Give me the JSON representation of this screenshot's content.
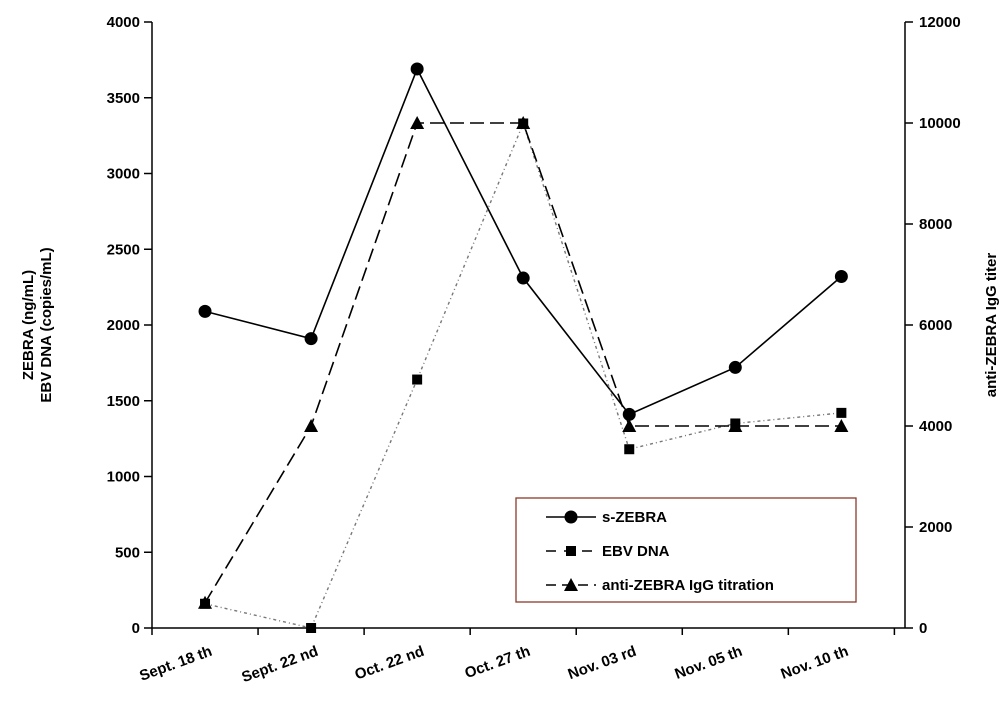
{
  "chart_data": {
    "type": "line",
    "title": "",
    "categories": [
      "Sept. 18 th",
      "Sept. 22 nd",
      "Oct. 22 nd",
      "Oct. 27 th",
      "Nov.  03 rd",
      "Nov.  05 th",
      "Nov.  10 th"
    ],
    "ylabel_left": [
      "ZEBRA (ng/mL)",
      "EBV DNA (copies/mL)"
    ],
    "ylabel_right": "anti-ZEBRA IgG titer",
    "ylim_left": [
      0,
      4000
    ],
    "yticks_left": [
      0,
      500,
      1000,
      1500,
      2000,
      2500,
      3000,
      3500,
      4000
    ],
    "ylim_right": [
      0,
      12000
    ],
    "yticks_right": [
      0,
      2000,
      4000,
      6000,
      8000,
      10000,
      12000
    ],
    "grid": false,
    "legend_position": "bottom-right",
    "series": [
      {
        "name": "s-ZEBRA",
        "axis": "left",
        "marker": "circle",
        "dash": "solid",
        "points": [
          {
            "x": "Sept. 18 th",
            "y": 2090
          },
          {
            "x": "Sept. 22 nd",
            "y": 1910
          },
          {
            "x": "Oct. 22 nd",
            "y": 3690
          },
          {
            "x": "Oct. 27 th",
            "y": 2310
          },
          {
            "x": "Nov.  03 rd",
            "y": 1410
          },
          {
            "x": "Nov.  05 th",
            "y": 1720
          },
          {
            "x": "Nov.  10 th",
            "y": 2320
          }
        ]
      },
      {
        "name": "EBV DNA",
        "axis": "left",
        "marker": "square",
        "dash": "dotdash",
        "points": [
          {
            "x": "Sept. 18 th",
            "y": 160
          },
          {
            "x": "Sept. 22 nd",
            "y": 0
          },
          {
            "x": "Oct. 22 nd",
            "y": 1640
          },
          {
            "x": "Oct. 27 th",
            "y": 3330
          },
          {
            "x": "Nov.  03 rd",
            "y": 1180
          },
          {
            "x": "Nov.  05 th",
            "y": 1350
          },
          {
            "x": "Nov.  10 th",
            "y": 1420
          }
        ]
      },
      {
        "name": "anti-ZEBRA IgG titration",
        "axis": "right",
        "marker": "triangle",
        "dash": "dashed",
        "points": [
          {
            "x": "Sept. 18 th",
            "y": 500
          },
          {
            "x": "Sept. 22 nd",
            "y": 4000
          },
          {
            "x": "Oct. 22 nd",
            "y": 10000
          },
          {
            "x": "Oct. 27 th",
            "y": 10000
          },
          {
            "x": "Nov.  03 rd",
            "y": 4000
          },
          {
            "x": "Nov.  05 th",
            "y": 4000
          },
          {
            "x": "Nov.  10 th",
            "y": 4000
          }
        ]
      }
    ]
  }
}
